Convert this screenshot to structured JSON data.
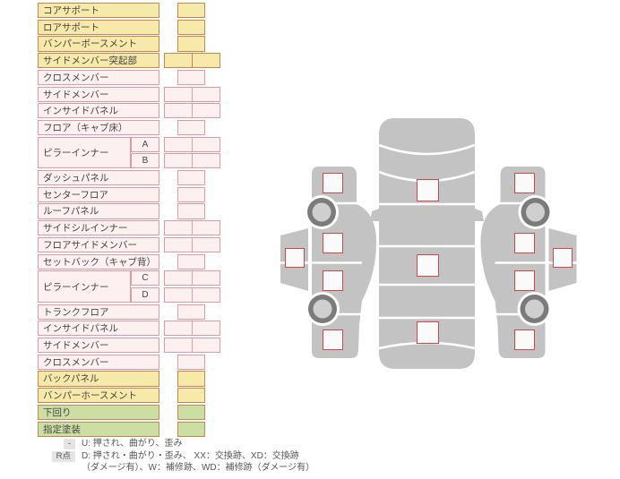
{
  "colors": {
    "yellow": {
      "fill": "#f7e9a9",
      "border": "#c8854f"
    },
    "pink": {
      "fill": "#fdf0f1",
      "border": "#e09aa1"
    },
    "green": {
      "fill": "#cbdfa5",
      "border": "#c8854f"
    },
    "checkbox_border": "#cd4848",
    "car_body": "#c3c3c3",
    "wheel_ring": "#7b7b7b",
    "wheel_hub": "#cfcfcf",
    "legend_badge_bg": "#e4e4e4",
    "label_text": "#444444",
    "legend_text": "#555555"
  },
  "parts_table": {
    "rows": [
      {
        "label": "コアサポート",
        "color": "yellow",
        "cells": "single"
      },
      {
        "label": "ロアサポート",
        "color": "yellow",
        "cells": "single"
      },
      {
        "label": "バンパーボースメント",
        "color": "yellow",
        "cells": "single"
      },
      {
        "label": "サイドメンバー突起部",
        "color": "yellow",
        "cells": "double"
      },
      {
        "label": "クロスメンバー",
        "color": "pink",
        "cells": "single"
      },
      {
        "label": "サイドメンバー",
        "color": "pink",
        "cells": "double"
      },
      {
        "label": "インサイドパネル",
        "color": "pink",
        "cells": "double"
      },
      {
        "label": "フロア（キャブ床）",
        "color": "pink",
        "cells": "single"
      },
      {
        "label": "ピラーインナー",
        "sub": "A",
        "color": "pink",
        "cells": "double",
        "group": "start"
      },
      {
        "sub": "B",
        "color": "pink",
        "cells": "double",
        "group": "cont"
      },
      {
        "label": "ダッシュパネル",
        "color": "pink",
        "cells": "single"
      },
      {
        "label": "センターフロア",
        "color": "pink",
        "cells": "single"
      },
      {
        "label": "ルーフパネル",
        "color": "pink",
        "cells": "single"
      },
      {
        "label": "サイドシルインナー",
        "color": "pink",
        "cells": "double"
      },
      {
        "label": "フロアサイドメンバー",
        "color": "pink",
        "cells": "double"
      },
      {
        "label": "セットバック（キャブ背）",
        "color": "pink",
        "cells": "single"
      },
      {
        "label": "ピラーインナー",
        "sub": "C",
        "color": "pink",
        "cells": "double",
        "group": "start"
      },
      {
        "sub": "D",
        "color": "pink",
        "cells": "double",
        "group": "cont"
      },
      {
        "label": "トランクフロア",
        "color": "pink",
        "cells": "single"
      },
      {
        "label": "インサイドパネル",
        "color": "pink",
        "cells": "double"
      },
      {
        "label": "サイドメンバー",
        "color": "pink",
        "cells": "double"
      },
      {
        "label": "クロスメンバー",
        "color": "pink",
        "cells": "single"
      },
      {
        "label": "バックパネル",
        "color": "yellow",
        "cells": "single"
      },
      {
        "label": "バンパーホースメント",
        "color": "yellow",
        "cells": "single"
      },
      {
        "label": "下回り",
        "color": "green",
        "cells": "single"
      },
      {
        "label": "指定塗装",
        "color": "green",
        "cells": "single"
      }
    ]
  },
  "legend": {
    "rows": [
      {
        "badge": "-",
        "lines": [
          "U: 押され、曲がり、歪み"
        ]
      },
      {
        "badge": "R点",
        "lines": [
          "D: 押され・曲がり・歪み、 XX：交換跡、XD：交換跡",
          "（ダメージ有）、W：補修跡、WD：補修跡（ダメージ有）"
        ]
      }
    ]
  }
}
